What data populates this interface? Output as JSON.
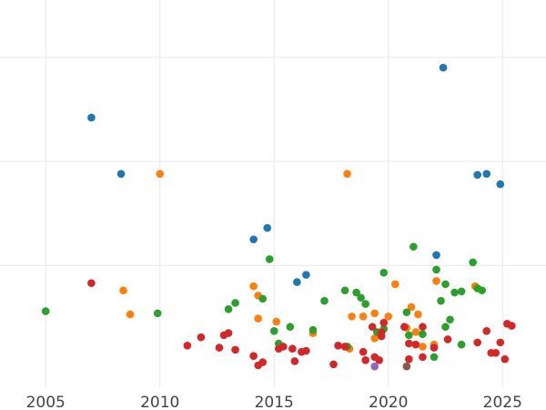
{
  "chart_data": {
    "type": "scatter",
    "title": "",
    "xlabel": "",
    "ylabel": "",
    "xlim": [
      2003.0,
      2026.9
    ],
    "ylim": [
      -1.7,
      35.5
    ],
    "x_ticks": [
      {
        "value": 2005,
        "label": "2005"
      },
      {
        "value": 2010,
        "label": "2010"
      },
      {
        "value": 2015,
        "label": "2015"
      },
      {
        "value": 2020,
        "label": "2020"
      },
      {
        "value": 2025,
        "label": "2025"
      }
    ],
    "y_gridlines": [
      10,
      20,
      30
    ],
    "y_tick_labels": [],
    "grid": true,
    "legend": "none",
    "colors": {
      "blue": "#1f77b4",
      "orange": "#ff7f0e",
      "green": "#2ca02c",
      "red": "#d62728",
      "purple": "#9467bd",
      "brown": "#8c564b"
    },
    "series": [
      {
        "color": "#1f77b4",
        "points": [
          [
            2007.0,
            24.2
          ],
          [
            2008.3,
            18.8
          ],
          [
            2014.1,
            12.5
          ],
          [
            2014.7,
            13.6
          ],
          [
            2016.0,
            8.4
          ],
          [
            2016.4,
            9.1
          ],
          [
            2022.1,
            11.0
          ],
          [
            2022.4,
            29.0
          ],
          [
            2023.9,
            18.7
          ],
          [
            2024.3,
            18.8
          ],
          [
            2024.9,
            17.8
          ]
        ]
      },
      {
        "color": "#ff7f0e",
        "points": [
          [
            2008.4,
            7.6
          ],
          [
            2008.7,
            5.3
          ],
          [
            2010.0,
            18.8
          ],
          [
            2014.1,
            8.0
          ],
          [
            2014.3,
            7.1
          ],
          [
            2014.3,
            4.9
          ],
          [
            2015.1,
            4.6
          ],
          [
            2016.7,
            3.5
          ],
          [
            2018.2,
            18.8
          ],
          [
            2018.3,
            2.0
          ],
          [
            2018.4,
            5.1
          ],
          [
            2018.9,
            5.1
          ],
          [
            2019.4,
            3.0
          ],
          [
            2019.4,
            5.4
          ],
          [
            2020.0,
            5.1
          ],
          [
            2020.3,
            8.2
          ],
          [
            2020.8,
            4.0
          ],
          [
            2021.0,
            6.0
          ],
          [
            2021.2,
            3.6
          ],
          [
            2021.3,
            5.3
          ],
          [
            2021.5,
            2.2
          ],
          [
            2022.0,
            2.4
          ],
          [
            2022.1,
            8.5
          ],
          [
            2023.8,
            8.0
          ]
        ]
      },
      {
        "color": "#2ca02c",
        "points": [
          [
            2005.0,
            5.6
          ],
          [
            2009.9,
            5.4
          ],
          [
            2013.0,
            5.8
          ],
          [
            2013.3,
            6.4
          ],
          [
            2014.5,
            6.8
          ],
          [
            2014.8,
            10.6
          ],
          [
            2015.0,
            3.7
          ],
          [
            2015.2,
            2.5
          ],
          [
            2015.7,
            4.1
          ],
          [
            2016.7,
            3.8
          ],
          [
            2017.2,
            6.6
          ],
          [
            2018.1,
            7.6
          ],
          [
            2018.2,
            2.2
          ],
          [
            2018.6,
            7.4
          ],
          [
            2018.8,
            6.9
          ],
          [
            2019.0,
            6.3
          ],
          [
            2019.5,
            3.6
          ],
          [
            2019.8,
            3.9
          ],
          [
            2019.8,
            9.3
          ],
          [
            2020.8,
            5.5
          ],
          [
            2020.9,
            3.3
          ],
          [
            2021.1,
            11.8
          ],
          [
            2021.5,
            3.4
          ],
          [
            2022.0,
            1.2
          ],
          [
            2022.1,
            9.6
          ],
          [
            2022.3,
            6.6
          ],
          [
            2022.5,
            8.2
          ],
          [
            2022.5,
            4.1
          ],
          [
            2022.7,
            4.8
          ],
          [
            2022.9,
            7.4
          ],
          [
            2023.2,
            7.5
          ],
          [
            2023.2,
            2.4
          ],
          [
            2023.7,
            10.3
          ],
          [
            2023.9,
            7.8
          ],
          [
            2024.1,
            7.6
          ]
        ]
      },
      {
        "color": "#d62728",
        "points": [
          [
            2007.0,
            8.3
          ],
          [
            2011.2,
            2.3
          ],
          [
            2011.8,
            3.1
          ],
          [
            2012.6,
            2.1
          ],
          [
            2012.8,
            3.3
          ],
          [
            2013.0,
            3.5
          ],
          [
            2013.3,
            1.9
          ],
          [
            2014.1,
            1.3
          ],
          [
            2014.3,
            0.4
          ],
          [
            2014.5,
            0.7
          ],
          [
            2015.2,
            2.0
          ],
          [
            2015.4,
            2.2
          ],
          [
            2015.8,
            2.0
          ],
          [
            2015.9,
            0.8
          ],
          [
            2016.2,
            1.7
          ],
          [
            2016.4,
            1.8
          ],
          [
            2017.6,
            0.5
          ],
          [
            2017.8,
            2.3
          ],
          [
            2018.1,
            2.2
          ],
          [
            2018.9,
            1.7
          ],
          [
            2019.0,
            0.9
          ],
          [
            2019.3,
            4.1
          ],
          [
            2019.4,
            1.2
          ],
          [
            2019.6,
            0.9
          ],
          [
            2019.7,
            3.2
          ],
          [
            2019.7,
            3.6
          ],
          [
            2019.8,
            4.5
          ],
          [
            2020.7,
            4.1
          ],
          [
            2020.9,
            2.5
          ],
          [
            2020.9,
            1.0
          ],
          [
            2021.2,
            2.4
          ],
          [
            2021.5,
            4.1
          ],
          [
            2021.5,
            1.2
          ],
          [
            2022.0,
            2.1
          ],
          [
            2022.6,
            2.9
          ],
          [
            2023.9,
            2.6
          ],
          [
            2024.3,
            3.7
          ],
          [
            2024.5,
            1.6
          ],
          [
            2024.7,
            1.6
          ],
          [
            2024.9,
            2.6
          ],
          [
            2025.1,
            1.0
          ],
          [
            2025.2,
            4.4
          ],
          [
            2025.4,
            4.2
          ]
        ]
      },
      {
        "color": "#9467bd",
        "points": [
          [
            2019.4,
            0.3
          ]
        ]
      },
      {
        "color": "#8c564b",
        "points": [
          [
            2020.8,
            0.3
          ]
        ]
      }
    ]
  }
}
